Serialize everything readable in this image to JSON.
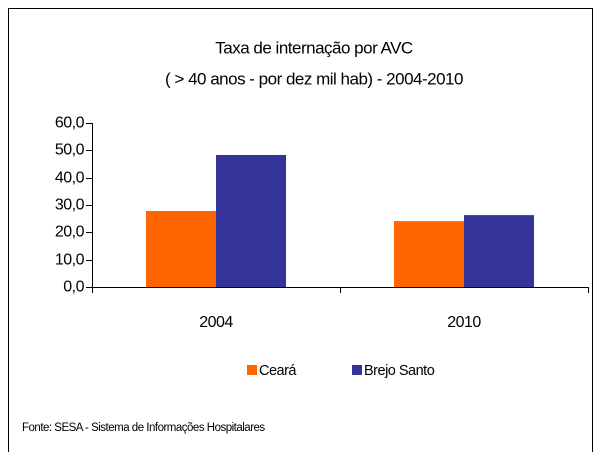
{
  "chart_data": {
    "type": "bar",
    "title": [
      "Taxa de internação por AVC",
      "( > 40 anos - por dez mil hab) - 2004-2010"
    ],
    "categories": [
      "2004",
      "2010"
    ],
    "series": [
      {
        "name": "Ceará",
        "color": "#FF6600",
        "values": [
          27.8,
          24.1
        ]
      },
      {
        "name": "Brejo Santo",
        "color": "#333399",
        "values": [
          48.3,
          26.3
        ]
      }
    ],
    "ylim": [
      0,
      60
    ],
    "yticks": [
      {
        "value": 0,
        "label": "0,0"
      },
      {
        "value": 10,
        "label": "10,0"
      },
      {
        "value": 20,
        "label": "20,0"
      },
      {
        "value": 30,
        "label": "30,0"
      },
      {
        "value": 40,
        "label": "40,0"
      },
      {
        "value": 50,
        "label": "50,0"
      },
      {
        "value": 60,
        "label": "60,0"
      }
    ],
    "legend": "bottom",
    "source": "Fonte: SESA - Sistema de Informações Hospitalares"
  }
}
